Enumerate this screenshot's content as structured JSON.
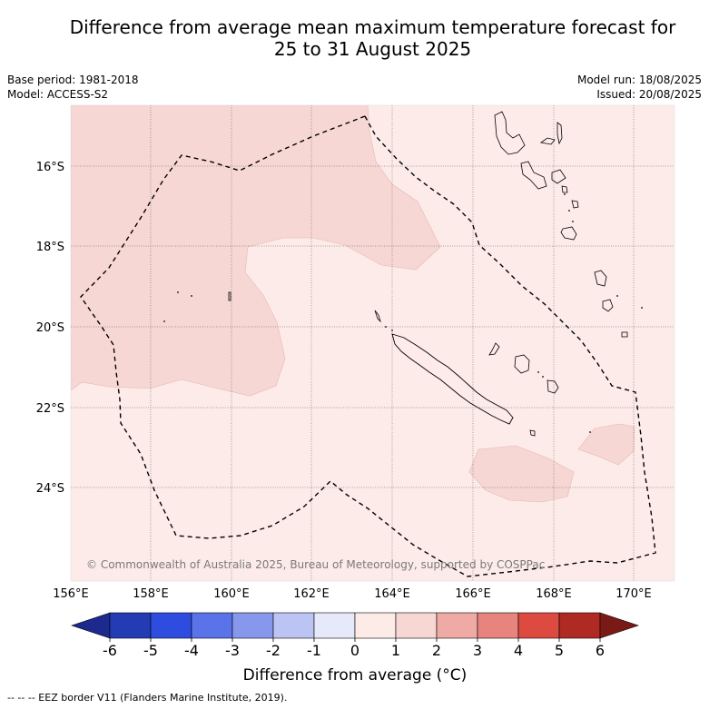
{
  "header": {
    "title_line1": "Difference from average mean maximum temperature forecast for",
    "title_line2": "25 to 31 August 2025",
    "base_period": "Base period: 1981-2018",
    "model": "Model: ACCESS-S2",
    "model_run": "Model run: 18/08/2025",
    "issued": "Issued: 20/08/2025"
  },
  "map": {
    "lat_labels": [
      "16°S",
      "18°S",
      "20°S",
      "22°S",
      "24°S"
    ],
    "lon_labels": [
      "156°E",
      "158°E",
      "160°E",
      "162°E",
      "164°E",
      "166°E",
      "168°E",
      "170°E"
    ],
    "copyright": "© Commonwealth of Australia 2025, Bureau of Meteorology, supported by COSPPac",
    "colors": {
      "anomaly_0_1": "#fcebe8",
      "anomaly_1_2": "#f7d7d4",
      "gridline": "#555555",
      "eez": "#000000"
    }
  },
  "colorbar": {
    "ticks": [
      "-6",
      "-5",
      "-4",
      "-3",
      "-2",
      "-1",
      "0",
      "1",
      "2",
      "3",
      "4",
      "5",
      "6"
    ],
    "colors": [
      "#1b2a8c",
      "#233cb3",
      "#2e4de0",
      "#5b73e8",
      "#8797ec",
      "#bcc4f3",
      "#e6e9f9",
      "#fdebe7",
      "#f7d7d3",
      "#f0aaa6",
      "#e8847e",
      "#dd4a3f",
      "#ae2a22",
      "#7a1a16"
    ],
    "title": "Difference from average (°C)"
  },
  "footnote": "--  --  -- EEZ border V11 (Flanders Marine Institute, 2019)."
}
